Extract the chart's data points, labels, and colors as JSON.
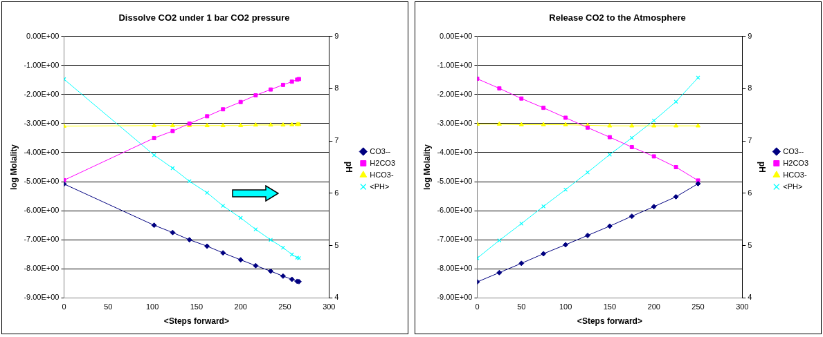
{
  "chart_data": [
    {
      "type": "line",
      "title": "Dissolve CO2 under 1 bar CO2 pressure",
      "xlabel": "<Steps forward>",
      "ylabel": "log Molality",
      "y2label": "pH",
      "xlim": [
        0,
        300
      ],
      "xticks": [
        0,
        50,
        100,
        150,
        200,
        250,
        300
      ],
      "ylim": [
        -9,
        0
      ],
      "yticks": [
        {
          "value": 0,
          "label": "0.00E+00"
        },
        {
          "value": -1,
          "label": "-1.00E+00"
        },
        {
          "value": -2,
          "label": "-2.00E+00"
        },
        {
          "value": -3,
          "label": "-3.00E+00"
        },
        {
          "value": -4,
          "label": "-4.00E+00"
        },
        {
          "value": -5,
          "label": "-5.00E+00"
        },
        {
          "value": -6,
          "label": "-6.00E+00"
        },
        {
          "value": -7,
          "label": "-7.00E+00"
        },
        {
          "value": -8,
          "label": "-8.00E+00"
        },
        {
          "value": -9,
          "label": "-9.00E+00"
        }
      ],
      "y2lim": [
        4,
        9
      ],
      "y2ticks": [
        4,
        5,
        6,
        7,
        8,
        9
      ],
      "grid": "y",
      "legend": "right",
      "x": [
        0,
        102,
        123,
        142,
        162,
        180,
        200,
        217,
        234,
        248,
        258,
        264,
        266
      ],
      "series": [
        {
          "name": "CO3--",
          "color": "#000080",
          "marker": "diamond",
          "values": [
            -5.08,
            -6.5,
            -6.75,
            -7.0,
            -7.22,
            -7.45,
            -7.69,
            -7.89,
            -8.08,
            -8.25,
            -8.36,
            -8.43,
            -8.44
          ]
        },
        {
          "name": "H2CO3",
          "color": "#ff00ff",
          "marker": "square",
          "values": [
            -4.95,
            -3.5,
            -3.26,
            -3.0,
            -2.75,
            -2.51,
            -2.26,
            -2.03,
            -1.83,
            -1.67,
            -1.56,
            -1.49,
            -1.47
          ]
        },
        {
          "name": "HCO3-",
          "color": "#ffff00",
          "marker": "triangle",
          "values": [
            -3.09,
            -3.07,
            -3.07,
            -3.07,
            -3.07,
            -3.07,
            -3.07,
            -3.05,
            -3.05,
            -3.05,
            -3.04,
            -3.03,
            -3.03
          ]
        },
        {
          "name": "<PH>",
          "color": "#00ffff",
          "marker": "cross",
          "axis": "y2",
          "values": [
            8.18,
            6.73,
            6.48,
            6.23,
            6.01,
            5.76,
            5.53,
            5.31,
            5.11,
            4.96,
            4.83,
            4.77,
            4.76
          ]
        }
      ]
    },
    {
      "type": "line",
      "title": "Release CO2 to the Atmosphere",
      "xlabel": "<Steps forward>",
      "ylabel": "log Molality",
      "y2label": "pH",
      "xlim": [
        0,
        300
      ],
      "xticks": [
        0,
        50,
        100,
        150,
        200,
        250,
        300
      ],
      "ylim": [
        -9,
        0
      ],
      "yticks": [
        {
          "value": 0,
          "label": "0.00E+00"
        },
        {
          "value": -1,
          "label": "-1.00E+00"
        },
        {
          "value": -2,
          "label": "-2.00E+00"
        },
        {
          "value": -3,
          "label": "-3.00E+00"
        },
        {
          "value": -4,
          "label": "-4.00E+00"
        },
        {
          "value": -5,
          "label": "-5.00E+00"
        },
        {
          "value": -6,
          "label": "-6.00E+00"
        },
        {
          "value": -7,
          "label": "-7.00E+00"
        },
        {
          "value": -8,
          "label": "-8.00E+00"
        },
        {
          "value": -9,
          "label": "-9.00E+00"
        }
      ],
      "y2lim": [
        4,
        9
      ],
      "y2ticks": [
        4,
        5,
        6,
        7,
        8,
        9
      ],
      "grid": "y",
      "legend": "right",
      "x": [
        0,
        25,
        50,
        75,
        100,
        125,
        150,
        175,
        200,
        225,
        250
      ],
      "series": [
        {
          "name": "CO3--",
          "color": "#000080",
          "marker": "diamond",
          "values": [
            -8.45,
            -8.13,
            -7.81,
            -7.48,
            -7.17,
            -6.85,
            -6.53,
            -6.19,
            -5.86,
            -5.52,
            -5.07
          ]
        },
        {
          "name": "H2CO3",
          "color": "#ff00ff",
          "marker": "square",
          "values": [
            -1.46,
            -1.79,
            -2.14,
            -2.46,
            -2.8,
            -3.14,
            -3.47,
            -3.81,
            -4.13,
            -4.5,
            -4.96
          ]
        },
        {
          "name": "HCO3-",
          "color": "#ffff00",
          "marker": "triangle",
          "values": [
            -3.02,
            -3.02,
            -3.04,
            -3.04,
            -3.04,
            -3.06,
            -3.08,
            -3.08,
            -3.08,
            -3.08,
            -3.08
          ]
        },
        {
          "name": "<PH>",
          "color": "#00ffff",
          "marker": "cross",
          "axis": "y2",
          "values": [
            4.76,
            5.1,
            5.42,
            5.75,
            6.07,
            6.4,
            6.74,
            7.06,
            7.39,
            7.75,
            8.21
          ]
        }
      ]
    }
  ]
}
